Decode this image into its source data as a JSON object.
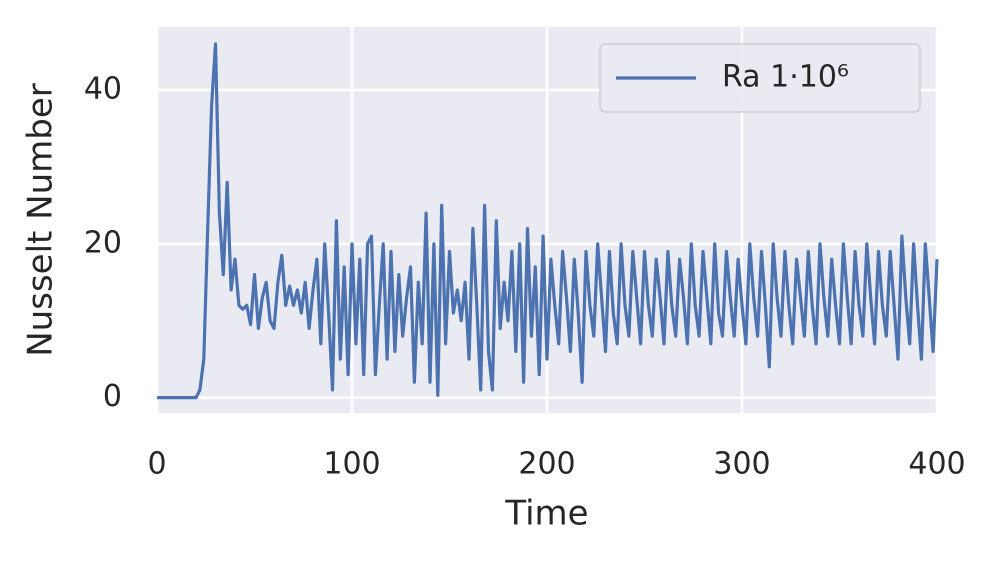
{
  "chart_data": {
    "type": "line",
    "x_label": "Time",
    "y_label": "Nusselt Number",
    "x": [
      0,
      2,
      4,
      6,
      8,
      10,
      12,
      14,
      16,
      18,
      20,
      22,
      24,
      26,
      28,
      30,
      32,
      34,
      36,
      38,
      40,
      42,
      44,
      46,
      48,
      50,
      52,
      54,
      56,
      58,
      60,
      62,
      64,
      66,
      68,
      70,
      72,
      74,
      76,
      78,
      80,
      82,
      84,
      86,
      88,
      90,
      92,
      94,
      96,
      98,
      100,
      102,
      104,
      106,
      108,
      110,
      112,
      114,
      116,
      118,
      120,
      122,
      124,
      126,
      128,
      130,
      132,
      134,
      136,
      138,
      140,
      142,
      144,
      146,
      148,
      150,
      152,
      154,
      156,
      158,
      160,
      162,
      164,
      166,
      168,
      170,
      172,
      174,
      176,
      178,
      180,
      182,
      184,
      186,
      188,
      190,
      192,
      194,
      196,
      198,
      200,
      202,
      204,
      206,
      208,
      210,
      212,
      214,
      216,
      218,
      220,
      222,
      224,
      226,
      228,
      230,
      232,
      234,
      236,
      238,
      240,
      242,
      244,
      246,
      248,
      250,
      252,
      254,
      256,
      258,
      260,
      262,
      264,
      266,
      268,
      270,
      272,
      274,
      276,
      278,
      280,
      282,
      284,
      286,
      288,
      290,
      292,
      294,
      296,
      298,
      300,
      302,
      304,
      306,
      308,
      310,
      312,
      314,
      316,
      318,
      320,
      322,
      324,
      326,
      328,
      330,
      332,
      334,
      336,
      338,
      340,
      342,
      344,
      346,
      348,
      350,
      352,
      354,
      356,
      358,
      360,
      362,
      364,
      366,
      368,
      370,
      372,
      374,
      376,
      378,
      380,
      382,
      384,
      386,
      388,
      390,
      392,
      394,
      396,
      398,
      400
    ],
    "series": [
      {
        "name": "Ra 1·10⁶",
        "color": "#4c72b0",
        "values": [
          0,
          0,
          0,
          0,
          0,
          0,
          0,
          0,
          0,
          0,
          0,
          1,
          5,
          22,
          38,
          46,
          24,
          16,
          28,
          14,
          18,
          12,
          11.5,
          12,
          9.5,
          16,
          9,
          13,
          15,
          10,
          9,
          15,
          18.5,
          12,
          14.5,
          12,
          14,
          11,
          15,
          9,
          14,
          18,
          7,
          20,
          11,
          1,
          23,
          5,
          17,
          3,
          20,
          7,
          18,
          3,
          20,
          21,
          3,
          12,
          20,
          5,
          19,
          6,
          16,
          8,
          13,
          17,
          2,
          15,
          7,
          24,
          2,
          20,
          0.3,
          25,
          7,
          19,
          11,
          14,
          10,
          15,
          5,
          22,
          12,
          1,
          25,
          6,
          1,
          23,
          9,
          15,
          10,
          19,
          6,
          20,
          2,
          22,
          8,
          17,
          3,
          21,
          5,
          18,
          12,
          7,
          19,
          13,
          6,
          18,
          11,
          2,
          19,
          12,
          8,
          20,
          13,
          6,
          19,
          11,
          7,
          20,
          12,
          8,
          19,
          13,
          7,
          19,
          12,
          8,
          18,
          13,
          7,
          19,
          12,
          8,
          18,
          13,
          7,
          20,
          12,
          8,
          19,
          13,
          7,
          20,
          11,
          8,
          19,
          13,
          8,
          18,
          12,
          7,
          20,
          13,
          8,
          19,
          12,
          4,
          20,
          13,
          8,
          19,
          12,
          7,
          18,
          13,
          8,
          19,
          12,
          7,
          20,
          13,
          8,
          18,
          12,
          7,
          20,
          13,
          7,
          19,
          12,
          8,
          20,
          13,
          7,
          19,
          12,
          8,
          19,
          12,
          5,
          21,
          13,
          7,
          20,
          12,
          5,
          20,
          13,
          6,
          18
        ]
      }
    ],
    "xlim": [
      0,
      400
    ],
    "ylim": [
      -2,
      48.2
    ],
    "xticks": [
      0,
      100,
      200,
      300,
      400
    ],
    "yticks": [
      0,
      20,
      40
    ],
    "grid": true,
    "legend": "upper right"
  }
}
